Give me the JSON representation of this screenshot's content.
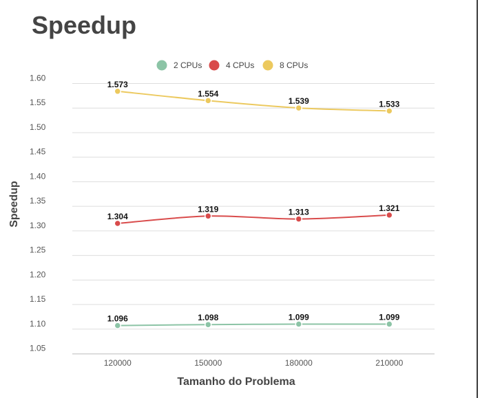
{
  "chart_data": {
    "type": "line",
    "title": "Speedup",
    "xlabel": "Tamanho do Problema",
    "ylabel": "Speedup",
    "categories": [
      "120000",
      "150000",
      "180000",
      "210000"
    ],
    "y_ticks": [
      "1.05",
      "1.10",
      "1.15",
      "1.20",
      "1.25",
      "1.30",
      "1.35",
      "1.40",
      "1.45",
      "1.50",
      "1.55",
      "1.60"
    ],
    "ylim": [
      1.025,
      1.625
    ],
    "grid": true,
    "legend_position": "top",
    "series": [
      {
        "name": "2 CPUs",
        "color": "#8cc4a6",
        "values": [
          1.096,
          1.098,
          1.099,
          1.099
        ],
        "labels": [
          "1.096",
          "1.098",
          "1.099",
          "1.099"
        ]
      },
      {
        "name": "4 CPUs",
        "color": "#d94b4b",
        "values": [
          1.304,
          1.319,
          1.313,
          1.321
        ],
        "labels": [
          "1.304",
          "1.319",
          "1.313",
          "1.321"
        ]
      },
      {
        "name": "8 CPUs",
        "color": "#ecc95e",
        "values": [
          1.573,
          1.554,
          1.539,
          1.533
        ],
        "labels": [
          "1.573",
          "1.554",
          "1.539",
          "1.533"
        ]
      }
    ]
  }
}
